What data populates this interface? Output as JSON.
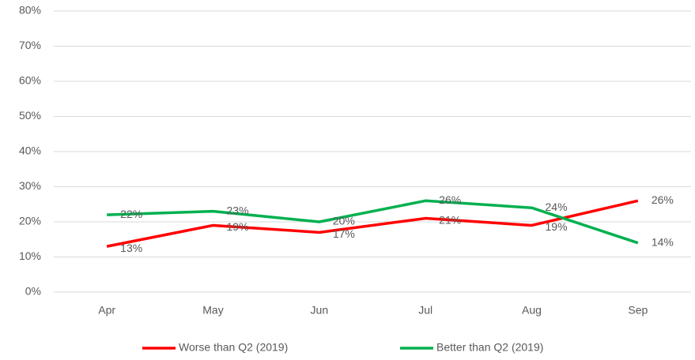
{
  "chart_data": {
    "type": "line",
    "categories": [
      "Apr",
      "May",
      "Jun",
      "Jul",
      "Aug",
      "Sep"
    ],
    "series": [
      {
        "name": "Worse than Q2 (2019)",
        "color": "#ff0000",
        "values": [
          13,
          19,
          17,
          21,
          19,
          26
        ],
        "value_labels": [
          "13%",
          "19%",
          "17%",
          "21%",
          "19%",
          "26%"
        ]
      },
      {
        "name": "Better than Q2 (2019)",
        "color": "#00b050",
        "values": [
          22,
          23,
          20,
          26,
          24,
          14
        ],
        "value_labels": [
          "22%",
          "23%",
          "20%",
          "26%",
          "24%",
          "14%"
        ]
      }
    ],
    "ylim": [
      0,
      80
    ],
    "yticks": [
      {
        "value": 0,
        "label": "0%"
      },
      {
        "value": 10,
        "label": "10%"
      },
      {
        "value": 20,
        "label": "20%"
      },
      {
        "value": 30,
        "label": "30%"
      },
      {
        "value": 40,
        "label": "40%"
      },
      {
        "value": 50,
        "label": "50%"
      },
      {
        "value": 60,
        "label": "60%"
      },
      {
        "value": 70,
        "label": "70%"
      },
      {
        "value": 80,
        "label": "80%"
      }
    ],
    "grid": true,
    "legend": "bottom"
  }
}
